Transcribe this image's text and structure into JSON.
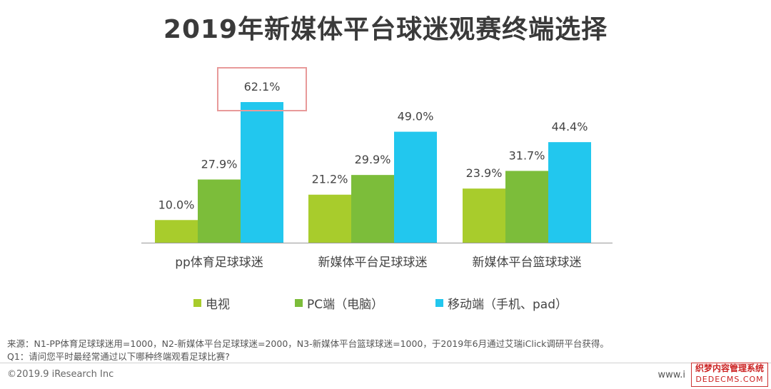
{
  "title": "2019年新媒体平台球迷观赛终端选择",
  "chart_data": {
    "type": "bar",
    "categories": [
      "pp体育足球球迷",
      "新媒体平台足球球迷",
      "新媒体平台篮球球迷"
    ],
    "series": [
      {
        "name": "电视",
        "values": [
          10.0,
          21.2,
          23.9
        ],
        "labels": [
          "10.0%",
          "21.2%",
          "23.9%"
        ],
        "color": "#a8cc2c"
      },
      {
        "name": "PC端（电脑）",
        "values": [
          27.9,
          29.9,
          31.7
        ],
        "labels": [
          "27.9%",
          "29.9%",
          "31.7%"
        ],
        "color": "#7cbd3a"
      },
      {
        "name": "移动端（手机、pad）",
        "values": [
          62.1,
          49.0,
          44.4
        ],
        "labels": [
          "62.1%",
          "49.0%",
          "44.4%"
        ],
        "color": "#22c7ee"
      }
    ],
    "ylim": [
      0,
      62.1
    ],
    "highlight": {
      "series": 2,
      "category": 0,
      "color": "#e89a9a"
    },
    "grid": false,
    "legend_position": "bottom"
  },
  "footer": {
    "source": "来源：N1-PP体育足球球迷用=1000，N2-新媒体平台足球球迷=2000，N3-新媒体平台篮球球迷=1000，于2019年6月通过艾瑞iClick调研平台获得。",
    "question": "Q1：请问您平时最经常通过以下哪种终端观看足球比赛?",
    "copyright": "©2019.9 iResearch Inc",
    "website": "www.i"
  },
  "watermark": {
    "line1": "织梦内容管理系统",
    "line2": "DEDECMS.COM"
  }
}
